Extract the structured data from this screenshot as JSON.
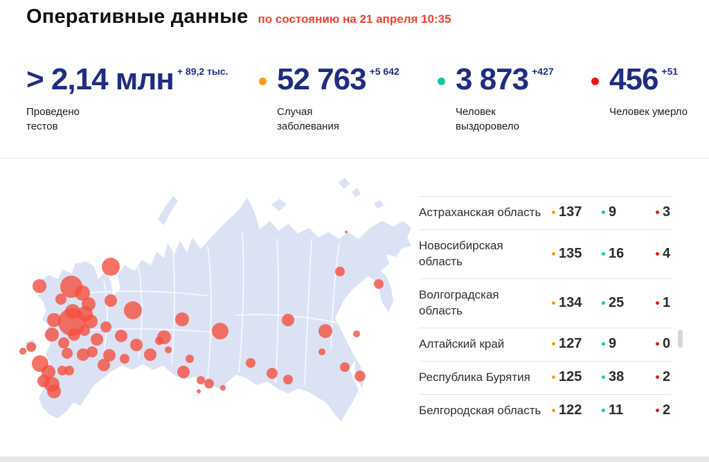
{
  "header": {
    "title": "Оперативные данные",
    "subtitle": "по состоянию на 21 апреля 10:35"
  },
  "stats": [
    {
      "value": "> 2,14 млн",
      "delta": "+ 89,2 тыс.",
      "label": "Проведено тестов",
      "dot": null
    },
    {
      "value": "52 763",
      "delta": "+5 642",
      "label": "Случая заболевания",
      "dot": "cases"
    },
    {
      "value": "3 873",
      "delta": "+427",
      "label": "Человек выздоровело",
      "dot": "rec"
    },
    {
      "value": "456",
      "delta": "+51",
      "label": "Человек умерло",
      "dot": "dead"
    }
  ],
  "colors": {
    "navy": "#1f2d82",
    "accent_red": "#f4402e",
    "dot_cases": "#f7a117",
    "dot_rec": "#16c8a8",
    "dot_dead": "#e51a1a",
    "map_land": "#dbe2f4",
    "map_circle": "#f4503e"
  },
  "regions_table": {
    "rows": [
      {
        "name": "Астраханская область",
        "cases": "137",
        "recovered": "9",
        "deaths": "3"
      },
      {
        "name": "Новосибирская область",
        "cases": "135",
        "recovered": "16",
        "deaths": "4"
      },
      {
        "name": "Волгоградская область",
        "cases": "134",
        "recovered": "25",
        "deaths": "1"
      },
      {
        "name": "Алтайский край",
        "cases": "127",
        "recovered": "9",
        "deaths": "0"
      },
      {
        "name": "Республика Бурятия",
        "cases": "125",
        "recovered": "38",
        "deaths": "2"
      },
      {
        "name": "Белгородская область",
        "cases": "122",
        "recovered": "11",
        "deaths": "2"
      }
    ]
  },
  "map": {
    "circle_opacity": 0.8,
    "circles": [
      [
        160,
        130,
        13
      ],
      [
        57,
        158,
        10
      ],
      [
        103,
        159,
        16
      ],
      [
        119,
        168,
        11
      ],
      [
        88,
        177,
        8
      ],
      [
        128,
        184,
        10
      ],
      [
        160,
        179,
        9
      ],
      [
        192,
        193,
        13
      ],
      [
        263,
        206,
        10
      ],
      [
        105,
        195,
        11
      ],
      [
        104,
        210,
        20
      ],
      [
        123,
        198,
        11
      ],
      [
        131,
        209,
        10
      ],
      [
        78,
        207,
        10
      ],
      [
        75,
        228,
        10
      ],
      [
        92,
        240,
        8
      ],
      [
        107,
        228,
        9
      ],
      [
        122,
        222,
        8
      ],
      [
        140,
        235,
        9
      ],
      [
        153,
        217,
        8
      ],
      [
        175,
        230,
        9
      ],
      [
        197,
        243,
        9
      ],
      [
        217,
        257,
        9
      ],
      [
        237,
        232,
        10
      ],
      [
        274,
        263,
        6
      ],
      [
        265,
        282,
        9
      ],
      [
        45,
        246,
        7
      ],
      [
        33,
        252,
        5
      ],
      [
        58,
        270,
        12
      ],
      [
        70,
        282,
        10
      ],
      [
        63,
        295,
        9
      ],
      [
        75,
        300,
        11
      ],
      [
        90,
        280,
        7
      ],
      [
        100,
        280,
        7
      ],
      [
        78,
        310,
        10
      ],
      [
        97,
        255,
        8
      ],
      [
        120,
        257,
        9
      ],
      [
        133,
        253,
        8
      ],
      [
        150,
        272,
        9
      ],
      [
        158,
        258,
        9
      ],
      [
        180,
        263,
        7
      ],
      [
        230,
        237,
        6
      ],
      [
        243,
        250,
        5
      ],
      [
        318,
        223,
        12
      ],
      [
        416,
        207,
        9
      ],
      [
        470,
        223,
        10
      ],
      [
        491,
        137,
        7
      ],
      [
        547,
        155,
        7
      ],
      [
        515,
        227,
        5
      ],
      [
        362,
        269,
        7
      ],
      [
        393,
        284,
        8
      ],
      [
        416,
        293,
        7
      ],
      [
        465,
        253,
        5
      ],
      [
        498,
        275,
        7
      ],
      [
        520,
        288,
        8
      ],
      [
        290,
        294,
        6
      ],
      [
        302,
        299,
        7
      ],
      [
        322,
        305,
        4
      ],
      [
        287,
        310,
        3
      ],
      [
        500,
        80,
        2
      ]
    ]
  }
}
